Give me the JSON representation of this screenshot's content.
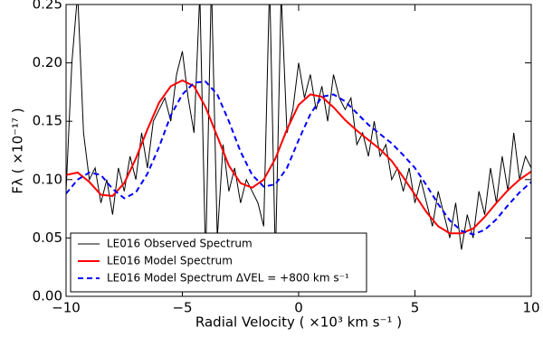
{
  "chart_data": {
    "type": "line",
    "xlabel": "Radial Velocity ( ×10³  km s⁻¹ )",
    "ylabel": "Fλ ( ×10⁻¹⁷ )",
    "xlim": [
      -10,
      10
    ],
    "ylim": [
      0,
      0.25
    ],
    "xticks": [
      {
        "value": -10,
        "label": "−10"
      },
      {
        "value": -5,
        "label": "−5"
      },
      0,
      5,
      10
    ],
    "yticks": [
      {
        "value": 0,
        "label": "0.00"
      },
      {
        "value": 0.05,
        "label": "0.05"
      },
      {
        "value": 0.1,
        "label": "0.10"
      },
      {
        "value": 0.15,
        "label": "0.15"
      },
      {
        "value": 0.2,
        "label": "0.20"
      },
      {
        "value": 0.25,
        "label": "0.25"
      }
    ],
    "legend": "lower left",
    "series": [
      {
        "name": "LE016 Observed Spectrum",
        "color": "#000000",
        "linestyle": "solid",
        "linewidth": 1,
        "x": [
          -10,
          -9.75,
          -9.5,
          -9.25,
          -9,
          -8.75,
          -8.5,
          -8.25,
          -8,
          -7.75,
          -7.5,
          -7.25,
          -7,
          -6.75,
          -6.5,
          -6.25,
          -6,
          -5.75,
          -5.5,
          -5.25,
          -5,
          -4.75,
          -4.5,
          -4.25,
          -4,
          -3.75,
          -3.5,
          -3.25,
          -3,
          -2.75,
          -2.5,
          -2.25,
          -2,
          -1.75,
          -1.5,
          -1.25,
          -1,
          -0.75,
          -0.5,
          -0.25,
          0,
          0.25,
          0.5,
          0.75,
          1,
          1.25,
          1.5,
          1.75,
          2,
          2.25,
          2.5,
          2.75,
          3,
          3.25,
          3.5,
          3.75,
          4,
          4.25,
          4.5,
          4.75,
          5,
          5.25,
          5.5,
          5.75,
          6,
          6.25,
          6.5,
          6.75,
          7,
          7.25,
          7.5,
          7.75,
          8,
          8.25,
          8.5,
          8.75,
          9,
          9.25,
          9.5,
          9.75,
          10
        ],
        "values": [
          0.09,
          0.2,
          0.26,
          0.14,
          0.1,
          0.11,
          0.08,
          0.1,
          0.07,
          0.11,
          0.09,
          0.12,
          0.1,
          0.14,
          0.11,
          0.15,
          0.16,
          0.17,
          0.15,
          0.19,
          0.21,
          0.17,
          0.14,
          0.26,
          0.03,
          0.27,
          0.05,
          0.13,
          0.09,
          0.11,
          0.08,
          0.1,
          0.09,
          0.08,
          0.06,
          0.27,
          0.03,
          0.26,
          0.14,
          0.16,
          0.2,
          0.17,
          0.19,
          0.16,
          0.18,
          0.15,
          0.19,
          0.17,
          0.16,
          0.17,
          0.13,
          0.14,
          0.12,
          0.15,
          0.12,
          0.13,
          0.1,
          0.11,
          0.09,
          0.11,
          0.08,
          0.1,
          0.08,
          0.06,
          0.09,
          0.07,
          0.05,
          0.08,
          0.04,
          0.07,
          0.05,
          0.09,
          0.07,
          0.11,
          0.08,
          0.12,
          0.09,
          0.14,
          0.1,
          0.12,
          0.11
        ]
      },
      {
        "name": "LE016 Model Spectrum",
        "color": "#ff0000",
        "linestyle": "solid",
        "linewidth": 2,
        "x": [
          -10,
          -9.5,
          -9,
          -8.5,
          -8,
          -7.5,
          -7,
          -6.5,
          -6,
          -5.5,
          -5,
          -4.5,
          -4,
          -3.5,
          -3,
          -2.5,
          -2,
          -1.5,
          -1,
          -0.5,
          0,
          0.5,
          1,
          1.5,
          2,
          2.5,
          3,
          3.5,
          4,
          4.5,
          5,
          5.5,
          6,
          6.5,
          7,
          7.5,
          8,
          8.5,
          9,
          9.5,
          10
        ],
        "values": [
          0.104,
          0.106,
          0.098,
          0.087,
          0.086,
          0.097,
          0.118,
          0.143,
          0.166,
          0.18,
          0.185,
          0.18,
          0.162,
          0.137,
          0.112,
          0.097,
          0.093,
          0.1,
          0.118,
          0.143,
          0.164,
          0.173,
          0.171,
          0.162,
          0.151,
          0.142,
          0.134,
          0.126,
          0.116,
          0.102,
          0.087,
          0.072,
          0.06,
          0.054,
          0.054,
          0.058,
          0.068,
          0.08,
          0.091,
          0.1,
          0.107
        ]
      },
      {
        "name": "LE016 Model Spectrum ΔVEL = +800 km s⁻¹",
        "color": "#0000ff",
        "linestyle": "dashed",
        "linewidth": 2,
        "x": [
          -10,
          -9.5,
          -9,
          -8.5,
          -8,
          -7.5,
          -7,
          -6.5,
          -6,
          -5.5,
          -5,
          -4.5,
          -4,
          -3.5,
          -3,
          -2.5,
          -2,
          -1.5,
          -1,
          -0.5,
          0,
          0.5,
          1,
          1.5,
          2,
          2.5,
          3,
          3.5,
          4,
          4.5,
          5,
          5.5,
          6,
          6.5,
          7,
          7.5,
          8,
          8.5,
          9,
          9.5,
          10
        ],
        "values": [
          0.088,
          0.1,
          0.106,
          0.104,
          0.092,
          0.084,
          0.089,
          0.105,
          0.128,
          0.155,
          0.173,
          0.183,
          0.184,
          0.173,
          0.15,
          0.124,
          0.104,
          0.094,
          0.096,
          0.11,
          0.134,
          0.156,
          0.171,
          0.173,
          0.167,
          0.157,
          0.147,
          0.139,
          0.131,
          0.121,
          0.11,
          0.095,
          0.079,
          0.065,
          0.056,
          0.053,
          0.057,
          0.066,
          0.078,
          0.089,
          0.098
        ]
      }
    ]
  }
}
